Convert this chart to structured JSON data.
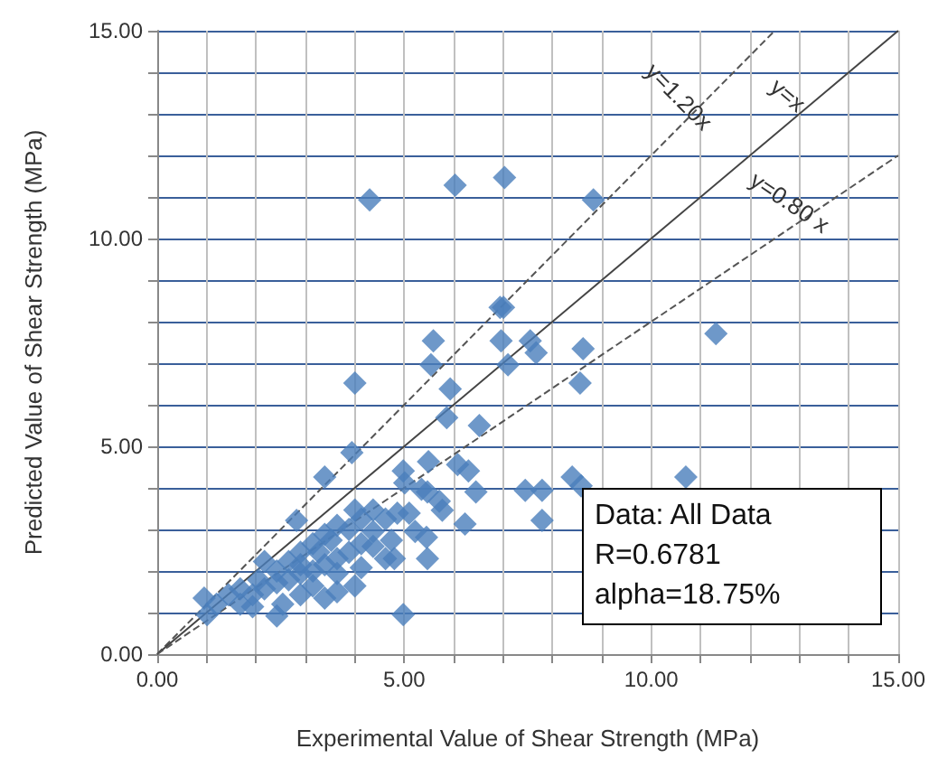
{
  "chart_data": {
    "type": "scatter",
    "xlabel": "Experimental Value of Shear Strength (MPa)",
    "ylabel": "Predicted Value of Shear Strength (MPa)",
    "xlim": [
      0,
      15
    ],
    "ylim": [
      0,
      15
    ],
    "xticks": [
      {
        "value": 0,
        "label": "0.00"
      },
      {
        "value": 1,
        "label": null
      },
      {
        "value": 2,
        "label": null
      },
      {
        "value": 3,
        "label": null
      },
      {
        "value": 4,
        "label": null
      },
      {
        "value": 5,
        "label": "5.00"
      },
      {
        "value": 6,
        "label": null
      },
      {
        "value": 7,
        "label": null
      },
      {
        "value": 8,
        "label": null
      },
      {
        "value": 9,
        "label": null
      },
      {
        "value": 10,
        "label": "10.00"
      },
      {
        "value": 11,
        "label": null
      },
      {
        "value": 12,
        "label": null
      },
      {
        "value": 13,
        "label": null
      },
      {
        "value": 14,
        "label": null
      },
      {
        "value": 15,
        "label": "15.00"
      }
    ],
    "yticks": [
      {
        "value": 0,
        "label": "0.00"
      },
      {
        "value": 1,
        "label": null
      },
      {
        "value": 2,
        "label": null
      },
      {
        "value": 3,
        "label": null
      },
      {
        "value": 4,
        "label": null
      },
      {
        "value": 5,
        "label": "5.00"
      },
      {
        "value": 6,
        "label": null
      },
      {
        "value": 7,
        "label": null
      },
      {
        "value": 8,
        "label": null
      },
      {
        "value": 9,
        "label": null
      },
      {
        "value": 10,
        "label": "10.00"
      },
      {
        "value": 11,
        "label": null
      },
      {
        "value": 12,
        "label": null
      },
      {
        "value": 13,
        "label": null
      },
      {
        "value": 14,
        "label": null
      },
      {
        "value": 15,
        "label": "15.00"
      }
    ],
    "grid": true,
    "legend": false,
    "marker": "diamond",
    "annotations": [
      "Data: All Data",
      "R=0.6781",
      "alpha=18.75%"
    ],
    "series": [
      {
        "color": "#4a7ebb",
        "x": [
          4.3,
          6.03,
          7.03,
          8.83,
          6.94,
          7.01,
          11.31,
          5.59,
          6.96,
          7.55,
          7.67,
          8.62,
          5.54,
          7.1,
          4.0,
          5.93,
          8.56,
          5.86,
          6.52,
          3.94,
          3.39,
          4.98,
          5.49,
          6.08,
          6.3,
          5.01,
          5.35,
          6.45,
          5.71,
          7.45,
          7.79,
          8.4,
          8.58,
          10.7,
          7.79,
          6.23,
          5.1,
          5.45,
          5.47,
          4.62,
          4.8,
          4.37,
          2.82,
          2.17,
          4.98,
          2.42,
          1.01,
          0.95,
          1.2,
          1.44,
          1.68,
          1.93,
          2.17,
          2.42,
          2.66,
          2.9,
          3.15,
          3.39,
          3.64,
          3.88,
          4.13,
          4.37,
          4.62,
          4.86,
          4.13,
          3.64,
          3.39,
          3.15,
          2.9,
          2.66,
          3.64,
          3.39,
          4.0,
          3.15,
          2.9,
          2.54,
          1.93,
          2.05,
          3.88,
          4.37,
          4.0,
          4.74,
          3.64,
          2.9,
          2.42,
          3.27,
          4.13,
          3.52,
          1.68,
          5.22,
          5.77,
          5.47
        ],
        "values": [
          10.93,
          11.28,
          11.47,
          10.93,
          8.34,
          8.34,
          7.71,
          7.54,
          7.54,
          7.54,
          7.25,
          7.35,
          6.96,
          6.96,
          6.52,
          6.38,
          6.52,
          5.69,
          5.5,
          4.85,
          4.26,
          4.41,
          4.63,
          4.56,
          4.41,
          4.12,
          3.97,
          3.9,
          3.68,
          3.94,
          3.94,
          4.26,
          4.05,
          4.26,
          3.22,
          3.13,
          3.39,
          2.81,
          2.3,
          2.3,
          2.3,
          2.59,
          3.22,
          2.23,
          0.95,
          0.92,
          0.95,
          1.35,
          1.2,
          1.43,
          1.2,
          1.43,
          1.57,
          1.72,
          1.79,
          1.94,
          2.0,
          2.15,
          2.3,
          2.45,
          2.66,
          2.95,
          3.25,
          3.39,
          3.25,
          3.1,
          2.88,
          2.66,
          2.45,
          2.23,
          1.5,
          1.35,
          1.64,
          1.64,
          1.43,
          1.2,
          1.14,
          1.79,
          3.0,
          3.47,
          3.47,
          2.74,
          1.94,
          2.15,
          2.0,
          2.45,
          2.08,
          2.74,
          1.57,
          2.95,
          3.46,
          3.9
        ]
      },
      {
        "type": "line",
        "name": "y=1.20x",
        "color": "#555555",
        "marker": "none",
        "line_style": "dashed",
        "x": [
          0,
          12.5
        ],
        "values": [
          0,
          15
        ]
      },
      {
        "type": "line",
        "name": "y=x",
        "color": "#444444",
        "marker": "none",
        "line_style": "solid",
        "x": [
          0,
          15
        ],
        "values": [
          0,
          15
        ]
      },
      {
        "type": "line",
        "name": "y=0.80 x",
        "color": "#555555",
        "marker": "none",
        "line_style": "dashed",
        "x": [
          0,
          15
        ],
        "values": [
          0,
          12
        ]
      }
    ]
  }
}
